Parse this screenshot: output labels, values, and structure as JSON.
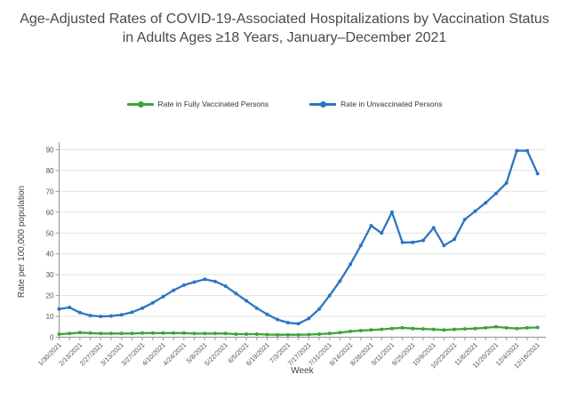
{
  "title": "Age-Adjusted Rates of COVID-19-Associated Hospitalizations by Vaccination Status in Adults Ages ≥18 Years, January–December 2021",
  "colors": {
    "vaccinated_green": "#3fa33c",
    "unvaccinated_blue": "#2e75c3",
    "gridline": "#e2e2e2",
    "axis_line": "#9e9e9e",
    "tick_text": "#555555",
    "title_text": "#4a4a4a"
  },
  "legend": {
    "items": [
      {
        "label": "Rate in Fully Vaccinated Persons",
        "series_index": 0
      },
      {
        "label": "Rate in Unvaccinated Persons",
        "series_index": 1
      }
    ]
  },
  "chart_data": {
    "type": "line",
    "title": "Age-Adjusted Rates of COVID-19-Associated Hospitalizations by Vaccination Status in Adults Ages ≥18 Years, January–December 2021",
    "xlabel": "Week",
    "ylabel": "Rate per 100,000 population",
    "ylim": [
      0,
      94
    ],
    "yticks": [
      0,
      10,
      20,
      30,
      40,
      50,
      60,
      70,
      80,
      90
    ],
    "grid": true,
    "legend_position": "top",
    "categories": [
      "1/30/2021",
      "2/6/2021",
      "2/13/2021",
      "2/20/2021",
      "2/27/2021",
      "3/6/2021",
      "3/13/2021",
      "3/20/2021",
      "3/27/2021",
      "4/3/2021",
      "4/10/2021",
      "4/17/2021",
      "4/24/2021",
      "5/1/2021",
      "5/8/2021",
      "5/15/2021",
      "5/22/2021",
      "5/29/2021",
      "6/5/2021",
      "6/12/2021",
      "6/19/2021",
      "6/26/2021",
      "7/3/2021",
      "7/10/2021",
      "7/17/2021",
      "7/24/2021",
      "7/31/2021",
      "8/7/2021",
      "8/14/2021",
      "8/21/2021",
      "8/28/2021",
      "9/4/2021",
      "9/11/2021",
      "9/18/2021",
      "9/25/2021",
      "10/2/2021",
      "10/9/2021",
      "10/16/2021",
      "10/23/2021",
      "10/30/2021",
      "11/6/2021",
      "11/13/2021",
      "11/20/2021",
      "11/27/2021",
      "12/4/2021",
      "12/11/2021",
      "12/18/2021"
    ],
    "x_tick_labels": [
      "1/30/2021",
      "2/13/2021",
      "2/27/2021",
      "3/13/2021",
      "3/27/2021",
      "4/10/2021",
      "4/24/2021",
      "5/8/2021",
      "5/22/2021",
      "6/5/2021",
      "6/19/2021",
      "7/3/2021",
      "7/17/2021",
      "7/31/2021",
      "8/14/2021",
      "8/28/2021",
      "9/11/2021",
      "9/25/2021",
      "10/9/2021",
      "10/23/2021",
      "11/6/2021",
      "11/20/2021",
      "12/4/2021",
      "12/18/2021"
    ],
    "series": [
      {
        "name": "Rate in Fully Vaccinated Persons",
        "color": "#3fa33c",
        "values": [
          1.5,
          1.8,
          2.2,
          2.0,
          1.8,
          1.8,
          1.8,
          1.8,
          2.0,
          2.0,
          2.0,
          2.0,
          2.0,
          1.8,
          1.8,
          1.8,
          1.8,
          1.5,
          1.5,
          1.5,
          1.3,
          1.2,
          1.2,
          1.2,
          1.3,
          1.5,
          1.8,
          2.2,
          2.8,
          3.2,
          3.5,
          3.8,
          4.2,
          4.5,
          4.2,
          4.0,
          3.8,
          3.5,
          3.8,
          4.0,
          4.2,
          4.5,
          5.0,
          4.5,
          4.2,
          4.5,
          4.7
        ]
      },
      {
        "name": "Rate in Unvaccinated Persons",
        "color": "#2e75c3",
        "values": [
          13.5,
          14.3,
          11.8,
          10.4,
          10.0,
          10.2,
          10.8,
          12.0,
          14.0,
          16.5,
          19.5,
          22.5,
          25.0,
          26.5,
          27.8,
          26.8,
          24.5,
          21.0,
          17.5,
          14.0,
          11.0,
          8.5,
          7.0,
          6.5,
          9.0,
          13.5,
          20.0,
          27.0,
          35.0,
          44.0,
          53.5,
          50.0,
          60.0,
          45.5,
          45.5,
          46.5,
          52.5,
          44.0,
          47.0,
          56.5,
          60.5,
          64.5,
          69.0,
          74.0,
          89.5,
          89.5,
          78.5
        ]
      }
    ]
  }
}
